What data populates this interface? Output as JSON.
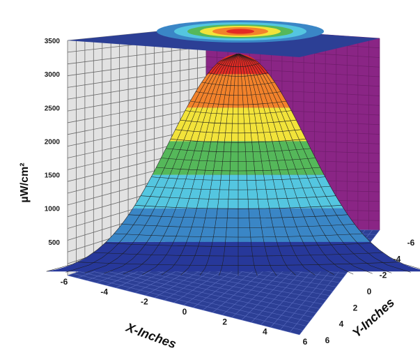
{
  "chart_data": {
    "type": "surface",
    "title": "",
    "ylabel": "µW/cm²",
    "xlabel": "X-Inches",
    "zlabel": "Y-Inches",
    "zlim": [
      0,
      3500
    ],
    "z_ticks": [
      3500,
      3000,
      2500,
      2000,
      1500,
      1000,
      500
    ],
    "x_ticks": [
      "-6",
      "-4",
      "-2",
      "0",
      "2",
      "4",
      "6"
    ],
    "y_ticks": [
      "-6",
      "-4",
      "-2",
      "0",
      "2",
      "4",
      "6"
    ],
    "peak_value": 3300,
    "peak_at": {
      "x": 0,
      "y": 0
    },
    "contour_levels": [
      0,
      500,
      1000,
      1500,
      2000,
      2500,
      3000,
      3500
    ],
    "colors": {
      "band_0_500": "#27389a",
      "band_500_1000": "#3a86c6",
      "band_1000_1500": "#54c6e0",
      "band_1500_2000": "#55b85a",
      "band_2000_2500": "#f2e33a",
      "band_2500_3000": "#f2822b",
      "band_3000_3500": "#e32a24",
      "left_wall": "#e2e2e2",
      "back_wall": "#8a2585",
      "floor": "#2c3f95"
    },
    "grid": true
  }
}
